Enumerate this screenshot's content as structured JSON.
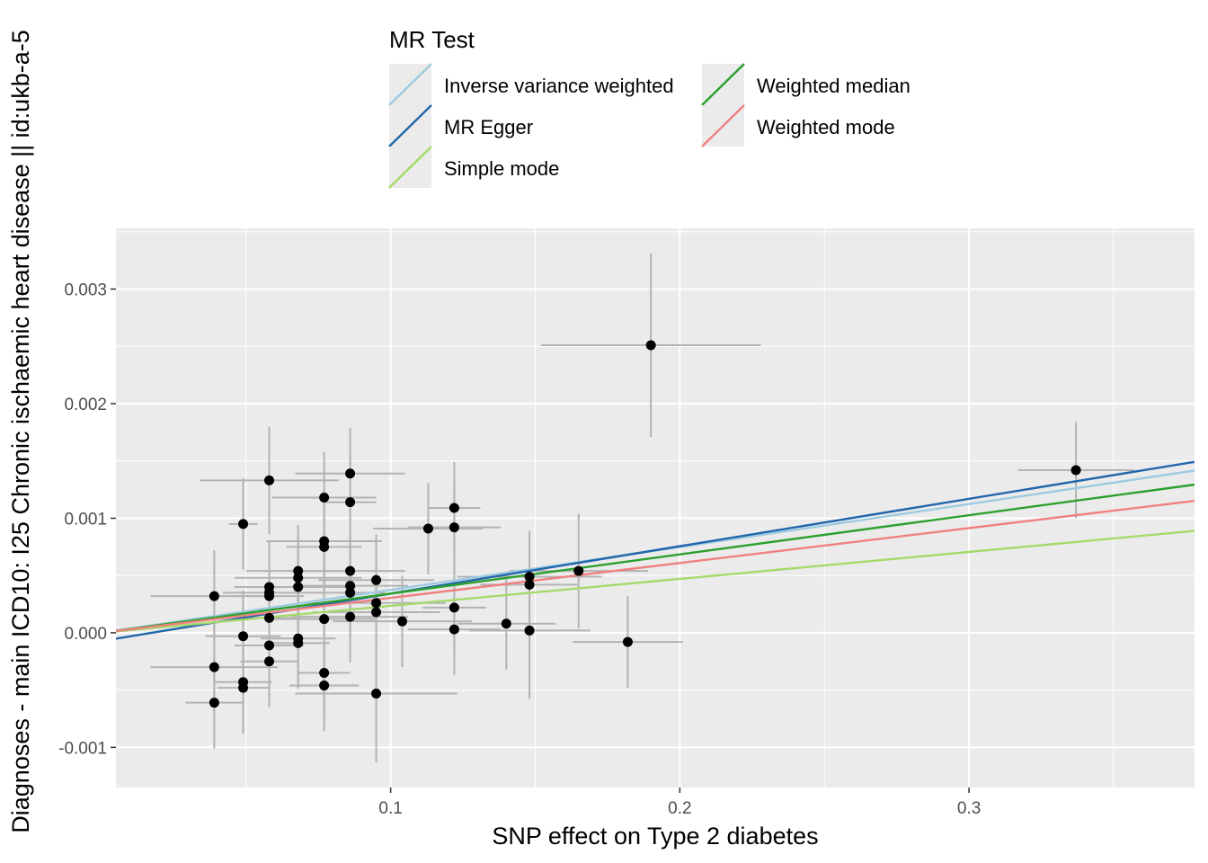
{
  "chart_data": {
    "type": "scatter",
    "xlabel": "SNP effect on Type 2 diabetes",
    "ylabel": "Diagnoses - main ICD10: I25 Chronic ischaemic heart disease || id:ukb-a-5",
    "xlim": [
      0.005,
      0.378
    ],
    "ylim": [
      -0.00135,
      0.00353
    ],
    "x_ticks": [
      0.1,
      0.2,
      0.3
    ],
    "x_tick_labels": [
      "0.1",
      "0.2",
      "0.3"
    ],
    "y_ticks": [
      -0.001,
      0.0,
      0.001,
      0.002,
      0.003
    ],
    "y_tick_labels": [
      "-0.001",
      "0.000",
      "0.001",
      "0.002",
      "0.003"
    ],
    "grid": true,
    "legend": {
      "title": "MR Test",
      "position": "top",
      "entries": [
        {
          "name": "Inverse variance weighted",
          "color": "#9ECAE1"
        },
        {
          "name": "MR Egger",
          "color": "#2166AC"
        },
        {
          "name": "Simple mode",
          "color": "#A6D96A"
        },
        {
          "name": "Weighted median",
          "color": "#2CA02C"
        },
        {
          "name": "Weighted mode",
          "color": "#F08080"
        }
      ]
    },
    "lines": [
      {
        "name": "Inverse variance weighted",
        "color": "#9ECAE1",
        "intercept": 0.0,
        "slope": 0.003745
      },
      {
        "name": "MR Egger",
        "color": "#2166AC",
        "intercept": -7.15e-05,
        "slope": 0.004136
      },
      {
        "name": "Simple mode",
        "color": "#A6D96A",
        "intercept": 0.0,
        "slope": 0.002353
      },
      {
        "name": "Weighted median",
        "color": "#2CA02C",
        "intercept": 0.0,
        "slope": 0.003421
      },
      {
        "name": "Weighted mode",
        "color": "#F08080",
        "intercept": 0.0,
        "slope": 0.003046
      }
    ],
    "points": [
      {
        "x": 0.039,
        "y": 0.00032,
        "xerr": 0.022,
        "yerr": 0.0004
      },
      {
        "x": 0.039,
        "y": -0.0003,
        "xerr": 0.022,
        "yerr": 0.0004
      },
      {
        "x": 0.039,
        "y": -0.00061,
        "xerr": 0.01,
        "yerr": 0.0004
      },
      {
        "x": 0.049,
        "y": 0.00095,
        "xerr": 0.005,
        "yerr": 0.0004
      },
      {
        "x": 0.049,
        "y": -3e-05,
        "xerr": 0.013,
        "yerr": 0.0004
      },
      {
        "x": 0.049,
        "y": -0.00043,
        "xerr": 0.01,
        "yerr": 0.0004
      },
      {
        "x": 0.049,
        "y": -0.00048,
        "xerr": 0.009,
        "yerr": 0.0004
      },
      {
        "x": 0.058,
        "y": 0.00133,
        "xerr": 0.024,
        "yerr": 0.00047
      },
      {
        "x": 0.058,
        "y": 0.0004,
        "xerr": 0.012,
        "yerr": 0.0004
      },
      {
        "x": 0.058,
        "y": 0.00035,
        "xerr": 0.016,
        "yerr": 0.0004
      },
      {
        "x": 0.058,
        "y": 0.00032,
        "xerr": 0.012,
        "yerr": 0.0004
      },
      {
        "x": 0.058,
        "y": 0.00013,
        "xerr": 0.011,
        "yerr": 0.0004
      },
      {
        "x": 0.058,
        "y": -0.00011,
        "xerr": 0.012,
        "yerr": 0.0004
      },
      {
        "x": 0.058,
        "y": -0.00025,
        "xerr": 0.01,
        "yerr": 0.0004
      },
      {
        "x": 0.068,
        "y": 0.00054,
        "xerr": 0.018,
        "yerr": 0.0004
      },
      {
        "x": 0.068,
        "y": 0.00048,
        "xerr": 0.022,
        "yerr": 0.0004
      },
      {
        "x": 0.068,
        "y": 0.0004,
        "xerr": 0.02,
        "yerr": 0.0004
      },
      {
        "x": 0.068,
        "y": -5e-05,
        "xerr": 0.013,
        "yerr": 0.0004
      },
      {
        "x": 0.068,
        "y": -9e-05,
        "xerr": 0.011,
        "yerr": 0.0004
      },
      {
        "x": 0.077,
        "y": 0.00118,
        "xerr": 0.018,
        "yerr": 0.0004
      },
      {
        "x": 0.077,
        "y": 0.0008,
        "xerr": 0.02,
        "yerr": 0.0004
      },
      {
        "x": 0.077,
        "y": 0.00075,
        "xerr": 0.013,
        "yerr": 0.0004
      },
      {
        "x": 0.077,
        "y": 0.00012,
        "xerr": 0.018,
        "yerr": 0.0004
      },
      {
        "x": 0.077,
        "y": -0.00035,
        "xerr": 0.009,
        "yerr": 0.0004
      },
      {
        "x": 0.077,
        "y": -0.00046,
        "xerr": 0.012,
        "yerr": 0.0004
      },
      {
        "x": 0.086,
        "y": 0.00139,
        "xerr": 0.019,
        "yerr": 0.0004
      },
      {
        "x": 0.086,
        "y": 0.00114,
        "xerr": 0.009,
        "yerr": 0.0004
      },
      {
        "x": 0.086,
        "y": 0.00054,
        "xerr": 0.019,
        "yerr": 0.0004
      },
      {
        "x": 0.086,
        "y": 0.00041,
        "xerr": 0.02,
        "yerr": 0.0004
      },
      {
        "x": 0.086,
        "y": 0.00035,
        "xerr": 0.012,
        "yerr": 0.0004
      },
      {
        "x": 0.086,
        "y": 0.00014,
        "xerr": 0.02,
        "yerr": 0.0004
      },
      {
        "x": 0.095,
        "y": 0.00046,
        "xerr": 0.02,
        "yerr": 0.0004
      },
      {
        "x": 0.095,
        "y": 0.00026,
        "xerr": 0.024,
        "yerr": 0.0004
      },
      {
        "x": 0.095,
        "y": 0.00018,
        "xerr": 0.022,
        "yerr": 0.0004
      },
      {
        "x": 0.095,
        "y": -0.00053,
        "xerr": 0.028,
        "yerr": 0.0006
      },
      {
        "x": 0.104,
        "y": 0.0001,
        "xerr": 0.024,
        "yerr": 0.0004
      },
      {
        "x": 0.113,
        "y": 0.00091,
        "xerr": 0.019,
        "yerr": 0.0004
      },
      {
        "x": 0.122,
        "y": 0.00109,
        "xerr": 0.009,
        "yerr": 0.0004
      },
      {
        "x": 0.122,
        "y": 0.00092,
        "xerr": 0.016,
        "yerr": 0.0004
      },
      {
        "x": 0.122,
        "y": 0.00022,
        "xerr": 0.011,
        "yerr": 0.0004
      },
      {
        "x": 0.122,
        "y": 3e-05,
        "xerr": 0.016,
        "yerr": 0.0004
      },
      {
        "x": 0.14,
        "y": 8e-05,
        "xerr": 0.017,
        "yerr": 0.0004
      },
      {
        "x": 0.148,
        "y": 0.00049,
        "xerr": 0.025,
        "yerr": 0.0004
      },
      {
        "x": 0.148,
        "y": 0.00042,
        "xerr": 0.017,
        "yerr": 0.0004
      },
      {
        "x": 0.148,
        "y": 2e-05,
        "xerr": 0.021,
        "yerr": 0.0006
      },
      {
        "x": 0.165,
        "y": 0.00054,
        "xerr": 0.024,
        "yerr": 0.0005
      },
      {
        "x": 0.182,
        "y": -8e-05,
        "xerr": 0.019,
        "yerr": 0.0004
      },
      {
        "x": 0.19,
        "y": 0.00251,
        "xerr": 0.038,
        "yerr": 0.0008
      },
      {
        "x": 0.337,
        "y": 0.00142,
        "xerr": 0.02,
        "yerr": 0.00042
      }
    ]
  }
}
